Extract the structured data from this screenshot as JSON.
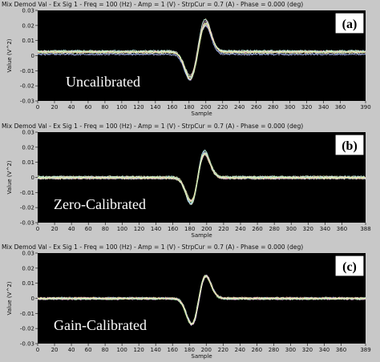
{
  "chart_data": [
    {
      "type": "line",
      "title": "Mix Demod Val - Ex Sig 1 - Freq = 100 (Hz) - Amp = 1 (V) - StrpCur = 0.7 (A) - Phase = 0.000 (deg)",
      "xlabel": "Sample",
      "ylabel": "Value (V^2)",
      "xlim": [
        0,
        390
      ],
      "ylim": [
        -0.03,
        0.03
      ],
      "xticks": [
        0,
        20,
        40,
        60,
        80,
        100,
        120,
        140,
        160,
        180,
        200,
        220,
        240,
        260,
        280,
        300,
        320,
        340,
        360,
        390
      ],
      "yticks": [
        0.03,
        0.02,
        0.01,
        0,
        -0.01,
        -0.02,
        -0.03
      ],
      "ytick_labels": [
        "0.03",
        "0.02",
        "0.01",
        "0",
        "-0.01",
        "-0.02",
        "-0.03"
      ],
      "badge": "(a)",
      "label": "Uncalibrated",
      "grid": false,
      "signal": {
        "baseline": 0.002,
        "spread": 0.0018,
        "neg_peak_x": 182,
        "neg_peak_y": -0.018,
        "pos_peak_x": 199,
        "pos_peak_y": 0.02,
        "width": 10
      },
      "series_count": 12
    },
    {
      "type": "line",
      "title": "Mix Demod Val - Ex Sig 1 - Freq = 100 (Hz) - Amp = 1 (V) - StrpCur = 0.7 (A) - Phase = 0.000 (deg)",
      "xlabel": "Sample",
      "ylabel": "Value (V^2)",
      "xlim": [
        0,
        388
      ],
      "ylim": [
        -0.03,
        0.03
      ],
      "xticks": [
        0,
        20,
        40,
        60,
        80,
        100,
        120,
        140,
        160,
        180,
        200,
        220,
        240,
        260,
        280,
        300,
        320,
        340,
        360,
        388
      ],
      "yticks": [
        0.03,
        0.02,
        0.01,
        0,
        -0.01,
        -0.02,
        -0.03
      ],
      "ytick_labels": [
        "0.03",
        "0.02",
        "0.01",
        "0",
        "-0.01",
        "-0.02",
        "-0.03"
      ],
      "badge": "(b)",
      "label": "Zero-Calibrated",
      "grid": false,
      "signal": {
        "baseline": 0.0,
        "spread": 0.0008,
        "neg_peak_x": 183,
        "neg_peak_y": -0.019,
        "pos_peak_x": 196,
        "pos_peak_y": 0.019,
        "width": 10
      },
      "series_count": 12
    },
    {
      "type": "line",
      "title": "Mix Demod Val - Ex Sig 1 - Freq = 100 (Hz) - Amp = 1 (V) - StrpCur = 0.7 (A) - Phase = 0.000 (deg)",
      "xlabel": "Sample",
      "ylabel": "Value (V^2)",
      "xlim": [
        0,
        389
      ],
      "ylim": [
        -0.03,
        0.03
      ],
      "xticks": [
        0,
        20,
        40,
        60,
        80,
        100,
        120,
        140,
        160,
        180,
        200,
        220,
        240,
        260,
        280,
        300,
        320,
        340,
        360,
        389
      ],
      "yticks": [
        0.03,
        0.02,
        0.01,
        0,
        -0.01,
        -0.02,
        -0.03
      ],
      "ytick_labels": [
        "0.03",
        "0.02",
        "0.01",
        "0",
        "-0.01",
        "-0.02",
        "-0.03"
      ],
      "badge": "(c)",
      "label": "Gain-Calibrated",
      "grid": false,
      "signal": {
        "baseline": 0.0,
        "spread": 0.0005,
        "neg_peak_x": 184,
        "neg_peak_y": -0.019,
        "pos_peak_x": 198,
        "pos_peak_y": 0.017,
        "width": 10
      },
      "series_count": 12
    }
  ],
  "colors": {
    "plot_bg": "#000000",
    "frame": "#c8c8c8",
    "trace": [
      "#ffffff",
      "#c8c8ff",
      "#ffd0d0",
      "#d0ffd0",
      "#ffffc0",
      "#c0ffff",
      "#ffc0ff",
      "#e0e0e0",
      "#a0c0ff",
      "#ffb0a0",
      "#b0ffb0",
      "#f0f0a0"
    ]
  }
}
